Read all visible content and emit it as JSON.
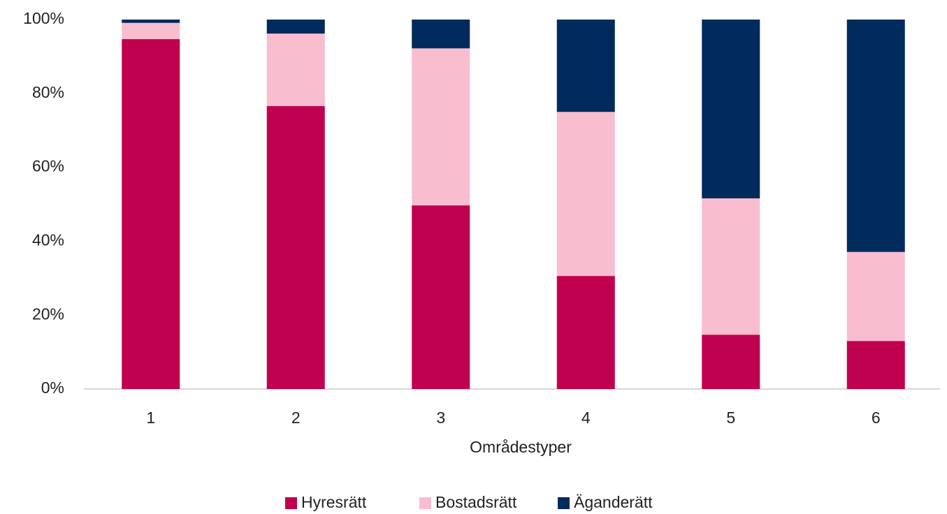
{
  "chart_data": {
    "type": "stacked_bar",
    "x_label": "Områdestyper",
    "categories": [
      "1",
      "2",
      "3",
      "4",
      "5",
      "6"
    ],
    "series": [
      {
        "name": "Hyresrätt",
        "color": "#c0004e",
        "values": [
          94.7,
          76.6,
          49.7,
          30.6,
          14.7,
          13.0
        ]
      },
      {
        "name": "Bostadsrätt",
        "color": "#f9bdd0",
        "values": [
          4.4,
          19.6,
          42.5,
          44.4,
          36.9,
          24.1
        ]
      },
      {
        "name": "Äganderätt",
        "color": "#002b5c",
        "values": [
          0.9,
          3.8,
          7.8,
          25.0,
          48.4,
          62.9
        ]
      }
    ],
    "ylim": [
      0,
      100
    ],
    "yticks": [
      {
        "value": 0,
        "label": "0%"
      },
      {
        "value": 20,
        "label": "20%"
      },
      {
        "value": 40,
        "label": "40%"
      },
      {
        "value": 60,
        "label": "60%"
      },
      {
        "value": 80,
        "label": "80%"
      },
      {
        "value": 100,
        "label": "100%"
      }
    ],
    "grid": false,
    "legend": "bottom"
  }
}
